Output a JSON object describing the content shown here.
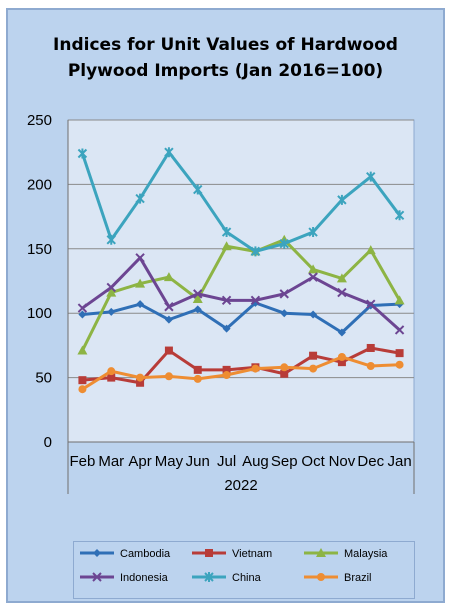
{
  "chart_data": {
    "type": "line",
    "title_line1": "Indices for Unit Values of Hardwood",
    "title_line2": "Plywood Imports (Jan 2016=100)",
    "xlabel": "",
    "ylabel": "",
    "year_label": "2022",
    "ylim": [
      0,
      250
    ],
    "yticks": [
      0,
      50,
      100,
      150,
      200,
      250
    ],
    "grid": true,
    "legend_position": "bottom",
    "categories": [
      "Feb",
      "Mar",
      "Apr",
      "May",
      "Jun",
      "Jul",
      "Aug",
      "Sep",
      "Oct",
      "Nov",
      "Dec",
      "Jan"
    ],
    "series": [
      {
        "name": "Cambodia",
        "color": "#2f6fb6",
        "marker": "diamond",
        "values": [
          99,
          101,
          107,
          95,
          103,
          88,
          108,
          100,
          99,
          85,
          106,
          107
        ]
      },
      {
        "name": "Vietnam",
        "color": "#b83c38",
        "marker": "square",
        "values": [
          48,
          50,
          46,
          71,
          56,
          56,
          58,
          53,
          67,
          62,
          73,
          69
        ]
      },
      {
        "name": "Malaysia",
        "color": "#8db444",
        "marker": "triangle",
        "values": [
          71,
          116,
          123,
          128,
          111,
          152,
          148,
          157,
          134,
          127,
          149,
          110
        ]
      },
      {
        "name": "Indonesia",
        "color": "#6c4592",
        "marker": "x",
        "values": [
          104,
          120,
          143,
          105,
          115,
          110,
          110,
          115,
          128,
          116,
          107,
          87
        ]
      },
      {
        "name": "China",
        "color": "#3ca4be",
        "marker": "star",
        "values": [
          224,
          157,
          189,
          225,
          196,
          163,
          148,
          154,
          163,
          188,
          206,
          176
        ]
      },
      {
        "name": "Brazil",
        "color": "#ee8d32",
        "marker": "circle",
        "values": [
          41,
          55,
          50,
          51,
          49,
          52,
          57,
          58,
          57,
          66,
          59,
          60
        ]
      }
    ]
  }
}
